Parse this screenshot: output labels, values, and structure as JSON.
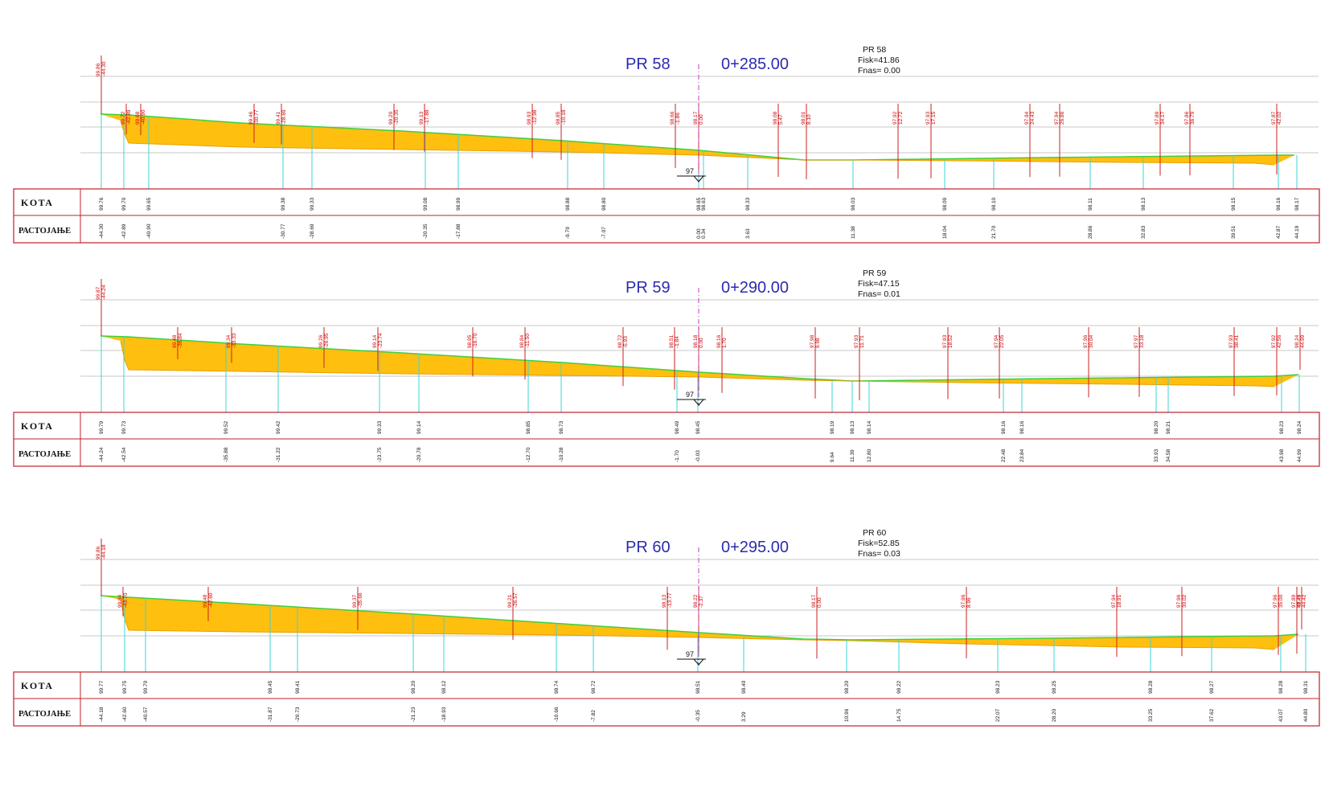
{
  "row_labels": {
    "kota": "KOTA",
    "distance": "РАСТОЈАЊЕ"
  },
  "colors": {
    "fill": "#ffbf0f",
    "terrain": "#3fcf3f",
    "design": "#e8a000",
    "station_line": "#3ed6d6",
    "red_tick": "#cc2020",
    "axis": "#c03fc0",
    "table_border": "#c0202a",
    "title": "#2b2bb0",
    "grid": "#c8c8c8"
  },
  "profiles": [
    {
      "name": "PR  58",
      "chainage": "0+285.00",
      "info": {
        "name": "PR  58",
        "fisk": "Fisk=41.86",
        "fnas": "Fnas=  0.00"
      },
      "datum": "97",
      "kota_values": [
        "99.76",
        "99.70",
        "99.65",
        "99.38",
        "99.33",
        "99.08",
        "98.99",
        "98.88",
        "98.80",
        "98.65",
        "98.63",
        "98.33",
        "98.03",
        "98.09",
        "98.10",
        "98.11",
        "98.13",
        "98.15",
        "98.16",
        "98.17"
      ],
      "distance_values": [
        "-44.30",
        "-42.89",
        "-40.90",
        "-30.77",
        "-28.69",
        "-20.35",
        "-17.88",
        "-9.79",
        "-7.07",
        "0.00",
        "0.34",
        "3.63",
        "11.38",
        "18.04",
        "21.70",
        "28.86",
        "32.83",
        "39.51",
        "42.87",
        "44.19"
      ],
      "stations_top": [
        {
          "a": "99.86",
          "b": "-44.30"
        },
        {
          "a": "99.72",
          "b": "-42.89"
        },
        {
          "a": "99.68",
          "b": "-40.90"
        },
        {
          "a": "99.46",
          "b": "-30.77"
        },
        {
          "a": "99.41",
          "b": "-28.69"
        },
        {
          "a": "99.20",
          "b": "-20.35"
        },
        {
          "a": "99.13",
          "b": "-17.88"
        },
        {
          "a": "98.93",
          "b": "-12.98"
        },
        {
          "a": "98.85",
          "b": "-10.18"
        },
        {
          "a": "98.66",
          "b": "-1.86"
        },
        {
          "a": "98.17",
          "b": "0.00"
        },
        {
          "a": "98.08",
          "b": "5.47"
        },
        {
          "a": "98.01",
          "b": "8.10"
        },
        {
          "a": "97.92",
          "b": "12.72"
        },
        {
          "a": "97.93",
          "b": "17.15"
        },
        {
          "a": "97.94",
          "b": "24.43"
        },
        {
          "a": "97.94",
          "b": "26.86"
        },
        {
          "a": "97.89",
          "b": "34.17"
        },
        {
          "a": "97.86",
          "b": "36.79"
        },
        {
          "a": "97.87",
          "b": "42.02"
        }
      ]
    },
    {
      "name": "PR  59",
      "chainage": "0+290.00",
      "info": {
        "name": "PR  59",
        "fisk": "Fisk=47.15",
        "fnas": "Fnas=  0.01"
      },
      "datum": "97",
      "kota_values": [
        "99.79",
        "99.73",
        "99.52",
        "99.42",
        "99.33",
        "99.14",
        "98.85",
        "98.73",
        "98.49",
        "98.45",
        "98.19",
        "98.13",
        "98.14",
        "98.16",
        "98.16",
        "98.20",
        "98.21",
        "98.23",
        "98.24"
      ],
      "distance_values": [
        "-44.24",
        "-42.54",
        "-35.88",
        "-31.22",
        "-23.75",
        "-20.78",
        "-12.70",
        "-10.28",
        "-1.70",
        "-0.03",
        "9.64",
        "11.39",
        "12.80",
        "22.48",
        "23.84",
        "33.93",
        "34.58",
        "43.98",
        "44.99"
      ],
      "stations_top": [
        {
          "a": "99.87",
          "b": "-44.24"
        },
        {
          "a": "99.48",
          "b": "-36.84"
        },
        {
          "a": "99.34",
          "b": "-33.33"
        },
        {
          "a": "99.26",
          "b": "-26.95"
        },
        {
          "a": "99.14",
          "b": "-23.74"
        },
        {
          "a": "98.95",
          "b": "-16.70"
        },
        {
          "a": "98.84",
          "b": "-11.50"
        },
        {
          "a": "98.72",
          "b": "-5.93"
        },
        {
          "a": "98.51",
          "b": "-1.84"
        },
        {
          "a": "98.18",
          "b": "0.00"
        },
        {
          "a": "98.16",
          "b": "1.70"
        },
        {
          "a": "97.98",
          "b": "9.98"
        },
        {
          "a": "97.93",
          "b": "11.71"
        },
        {
          "a": "97.93",
          "b": "18.52"
        },
        {
          "a": "97.94",
          "b": "22.05"
        },
        {
          "a": "97.96",
          "b": "30.04"
        },
        {
          "a": "97.97",
          "b": "33.18"
        },
        {
          "a": "97.93",
          "b": "38.41"
        },
        {
          "a": "97.92",
          "b": "42.56"
        },
        {
          "a": "98.24",
          "b": "44.99"
        }
      ]
    },
    {
      "name": "PR  60",
      "chainage": "0+295.00",
      "info": {
        "name": "PR  60",
        "fisk": "Fisk=52.85",
        "fnas": "Fnas=  0.03"
      },
      "datum": "97",
      "kota_values": [
        "99.77",
        "99.75",
        "99.70",
        "98.45",
        "98.41",
        "98.20",
        "98.12",
        "98.74",
        "98.72",
        "98.51",
        "98.40",
        "98.20",
        "98.22",
        "98.23",
        "98.25",
        "98.28",
        "98.27",
        "98.28",
        "98.31"
      ],
      "distance_values": [
        "-44.18",
        "-42.60",
        "-40.57",
        "-31.87",
        "-29.73",
        "-21.23",
        "-18.93",
        "-10.66",
        "-7.82",
        "-0.35",
        "3.29",
        "10.96",
        "14.75",
        "22.07",
        "28.20",
        "33.25",
        "37.62",
        "43.07",
        "44.80"
      ],
      "stations_top": [
        {
          "a": "99.86",
          "b": "-44.18"
        },
        {
          "a": "99.84",
          "b": "-43.70"
        },
        {
          "a": "99.48",
          "b": "-42.60"
        },
        {
          "a": "99.37",
          "b": "-35.66"
        },
        {
          "a": "99.21",
          "b": "-26.57"
        },
        {
          "a": "98.13",
          "b": "-13.77"
        },
        {
          "a": "98.22",
          "b": "-2.37"
        },
        {
          "a": "98.17",
          "b": "0.00"
        },
        {
          "a": "97.96",
          "b": "8.96"
        },
        {
          "a": "97.94",
          "b": "18.91"
        },
        {
          "a": "97.96",
          "b": "30.02"
        },
        {
          "a": "97.96",
          "b": "35.00"
        },
        {
          "a": "97.89",
          "b": "42.49"
        },
        {
          "a": "98.24",
          "b": "44.42"
        }
      ]
    }
  ]
}
